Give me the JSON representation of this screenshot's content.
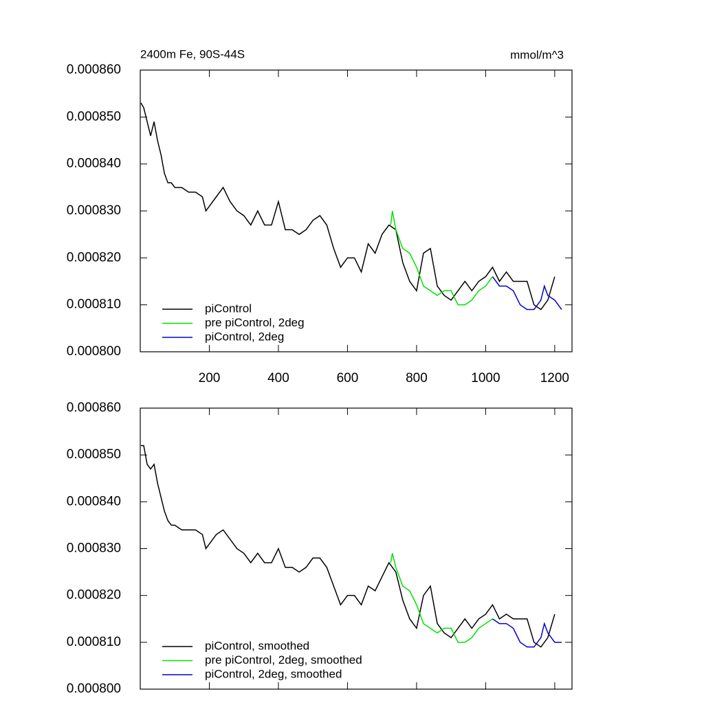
{
  "chart_data": [
    {
      "type": "line",
      "title": "2400m Fe, 90S-44S",
      "units": "mmol/m^3",
      "xlim": [
        0,
        1250
      ],
      "ylim": [
        0.0008,
        0.00086
      ],
      "xticks": [
        200,
        400,
        600,
        800,
        1000,
        1200
      ],
      "yticks": [
        {
          "value": 0.0008,
          "label": "0.000800"
        },
        {
          "value": 0.00081,
          "label": "0.000810"
        },
        {
          "value": 0.00082,
          "label": "0.000820"
        },
        {
          "value": 0.00083,
          "label": "0.000830"
        },
        {
          "value": 0.00084,
          "label": "0.000840"
        },
        {
          "value": 0.00085,
          "label": "0.000850"
        },
        {
          "value": 0.00086,
          "label": "0.000860"
        }
      ],
      "legend": "lower left",
      "series": [
        {
          "name": "piControl",
          "color": "#000000",
          "x": [
            2,
            10,
            20,
            30,
            40,
            50,
            60,
            70,
            80,
            90,
            100,
            120,
            140,
            160,
            180,
            190,
            200,
            220,
            240,
            260,
            280,
            300,
            320,
            340,
            360,
            380,
            400,
            420,
            440,
            460,
            480,
            500,
            520,
            540,
            560,
            580,
            600,
            620,
            640,
            660,
            680,
            700,
            720,
            740,
            760,
            780,
            800,
            820,
            840,
            860,
            880,
            900,
            920,
            940,
            960,
            980,
            1000,
            1020,
            1040,
            1060,
            1080,
            1100,
            1120,
            1140,
            1160,
            1180,
            1200
          ],
          "values": [
            0.000853,
            0.000852,
            0.000849,
            0.000846,
            0.000849,
            0.000845,
            0.000842,
            0.000838,
            0.000836,
            0.000836,
            0.000835,
            0.000835,
            0.000834,
            0.000834,
            0.000833,
            0.00083,
            0.000831,
            0.000833,
            0.000835,
            0.000832,
            0.00083,
            0.000829,
            0.000827,
            0.00083,
            0.000827,
            0.000827,
            0.000832,
            0.000826,
            0.000826,
            0.000825,
            0.000826,
            0.000828,
            0.000829,
            0.000827,
            0.000822,
            0.000818,
            0.00082,
            0.00082,
            0.000817,
            0.000823,
            0.000821,
            0.000825,
            0.000827,
            0.000826,
            0.000819,
            0.000815,
            0.000813,
            0.000821,
            0.000822,
            0.000814,
            0.000812,
            0.000811,
            0.000813,
            0.000815,
            0.000813,
            0.000815,
            0.000816,
            0.000818,
            0.000815,
            0.000817,
            0.000815,
            0.000815,
            0.000815,
            0.00081,
            0.000809,
            0.000811,
            0.000816
          ]
        },
        {
          "name": "pre piControl, 2deg",
          "color": "#00e000",
          "x": [
            725,
            730,
            740,
            760,
            780,
            800,
            820,
            840,
            860,
            880,
            900,
            920,
            940,
            960,
            980,
            1000,
            1020
          ],
          "values": [
            0.000827,
            0.00083,
            0.000826,
            0.000822,
            0.000821,
            0.000818,
            0.000814,
            0.000813,
            0.000812,
            0.000813,
            0.000813,
            0.00081,
            0.00081,
            0.000811,
            0.000813,
            0.000814,
            0.000816
          ]
        },
        {
          "name": "piControl, 2deg",
          "color": "#0000cc",
          "x": [
            1020,
            1040,
            1060,
            1080,
            1100,
            1120,
            1140,
            1160,
            1170,
            1180,
            1200,
            1220
          ],
          "values": [
            0.000816,
            0.000814,
            0.000814,
            0.000813,
            0.00081,
            0.000809,
            0.000809,
            0.000811,
            0.000814,
            0.000812,
            0.000811,
            0.000809
          ]
        }
      ]
    },
    {
      "type": "line",
      "xlim": [
        0,
        1250
      ],
      "ylim": [
        0.0008,
        0.00086
      ],
      "xticks": [
        200,
        400,
        600,
        800,
        1000,
        1200
      ],
      "yticks": [
        {
          "value": 0.0008,
          "label": "0.000800"
        },
        {
          "value": 0.00081,
          "label": "0.000810"
        },
        {
          "value": 0.00082,
          "label": "0.000820"
        },
        {
          "value": 0.00083,
          "label": "0.000830"
        },
        {
          "value": 0.00084,
          "label": "0.000840"
        },
        {
          "value": 0.00085,
          "label": "0.000850"
        },
        {
          "value": 0.00086,
          "label": "0.000860"
        }
      ],
      "legend": "lower left",
      "series": [
        {
          "name": "piControl, smoothed",
          "color": "#000000",
          "x": [
            2,
            10,
            20,
            30,
            40,
            50,
            60,
            70,
            80,
            90,
            100,
            120,
            140,
            160,
            180,
            190,
            200,
            220,
            240,
            260,
            280,
            300,
            320,
            340,
            360,
            380,
            400,
            420,
            440,
            460,
            480,
            500,
            520,
            540,
            560,
            580,
            600,
            620,
            640,
            660,
            680,
            700,
            720,
            740,
            760,
            780,
            800,
            820,
            840,
            860,
            880,
            900,
            920,
            940,
            960,
            980,
            1000,
            1020,
            1040,
            1060,
            1080,
            1100,
            1120,
            1140,
            1160,
            1180,
            1200
          ],
          "values": [
            0.000852,
            0.000852,
            0.000848,
            0.000847,
            0.000848,
            0.000844,
            0.000841,
            0.000838,
            0.000836,
            0.000835,
            0.000835,
            0.000834,
            0.000834,
            0.000834,
            0.000833,
            0.00083,
            0.000831,
            0.000833,
            0.000834,
            0.000832,
            0.00083,
            0.000829,
            0.000827,
            0.000829,
            0.000827,
            0.000827,
            0.00083,
            0.000826,
            0.000826,
            0.000825,
            0.000826,
            0.000828,
            0.000828,
            0.000826,
            0.000822,
            0.000818,
            0.00082,
            0.00082,
            0.000818,
            0.000822,
            0.000821,
            0.000824,
            0.000827,
            0.000825,
            0.000819,
            0.000815,
            0.000813,
            0.00082,
            0.000822,
            0.000814,
            0.000812,
            0.000811,
            0.000813,
            0.000815,
            0.000813,
            0.000815,
            0.000816,
            0.000818,
            0.000815,
            0.000816,
            0.000815,
            0.000815,
            0.000815,
            0.00081,
            0.000809,
            0.000811,
            0.000816
          ]
        },
        {
          "name": "pre piControl, 2deg, smoothed",
          "color": "#00e000",
          "x": [
            725,
            730,
            740,
            760,
            780,
            800,
            820,
            840,
            860,
            880,
            900,
            920,
            940,
            960,
            980,
            1000,
            1020
          ],
          "values": [
            0.000827,
            0.000829,
            0.000826,
            0.000822,
            0.000821,
            0.000818,
            0.000814,
            0.000813,
            0.000812,
            0.000813,
            0.000813,
            0.00081,
            0.00081,
            0.000811,
            0.000813,
            0.000814,
            0.000815
          ]
        },
        {
          "name": "piControl, 2deg, smoothed",
          "color": "#0000cc",
          "x": [
            1020,
            1040,
            1060,
            1080,
            1100,
            1120,
            1140,
            1160,
            1170,
            1180,
            1200,
            1220
          ],
          "values": [
            0.000815,
            0.000814,
            0.000814,
            0.000813,
            0.00081,
            0.000809,
            0.000809,
            0.000811,
            0.000814,
            0.000812,
            0.00081,
            0.00081
          ]
        }
      ]
    }
  ]
}
